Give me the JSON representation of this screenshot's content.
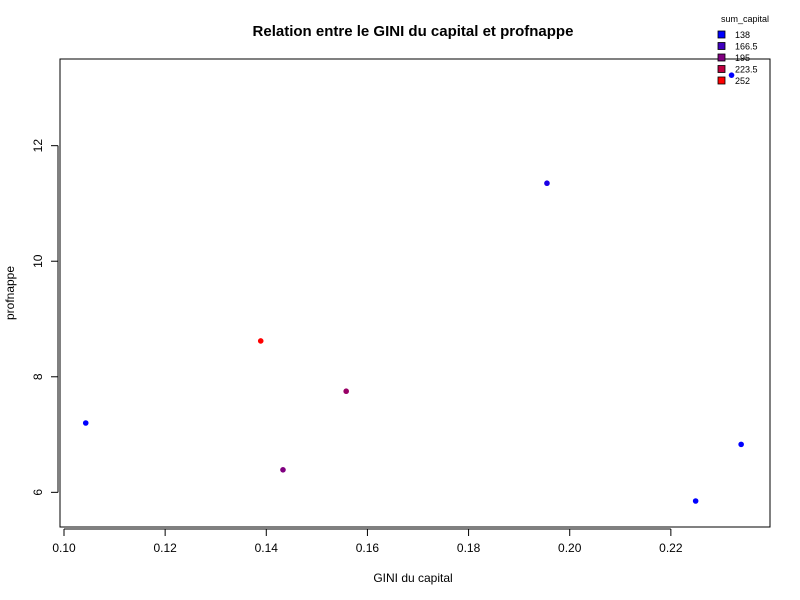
{
  "chart_data": {
    "type": "scatter",
    "title": "Relation entre le GINI du capital et profnappe",
    "xlabel": "GINI du capital",
    "ylabel": "profnappe",
    "xlim": [
      0.1,
      0.24
    ],
    "ylim": [
      5.4,
      13.5
    ],
    "x_ticks": [
      0.1,
      0.12,
      0.14,
      0.16,
      0.18,
      0.2,
      0.22
    ],
    "x_tick_labels": [
      "0.10",
      "0.12",
      "0.14",
      "0.16",
      "0.18",
      "0.20",
      "0.22"
    ],
    "y_ticks": [
      6,
      8,
      10,
      12
    ],
    "y_tick_labels": [
      "6",
      "8",
      "10",
      "12"
    ],
    "grid": false,
    "legend": {
      "title": "sum_capital",
      "placement": "top-right",
      "entries": [
        {
          "label": "138",
          "color": "#0000ff"
        },
        {
          "label": "166.5",
          "color": "#4000bf"
        },
        {
          "label": "195",
          "color": "#800080"
        },
        {
          "label": "223.5",
          "color": "#bf0040"
        },
        {
          "label": "252",
          "color": "#ff0000"
        }
      ]
    },
    "points": [
      {
        "x": 0.1043,
        "y": 7.2,
        "color": "#0000ff"
      },
      {
        "x": 0.1389,
        "y": 8.62,
        "color": "#ff0000"
      },
      {
        "x": 0.1433,
        "y": 6.39,
        "color": "#800080"
      },
      {
        "x": 0.1558,
        "y": 7.75,
        "color": "#990066"
      },
      {
        "x": 0.1955,
        "y": 11.35,
        "color": "#1a00e6"
      },
      {
        "x": 0.2249,
        "y": 5.85,
        "color": "#0000ff"
      },
      {
        "x": 0.232,
        "y": 13.22,
        "color": "#0000ff"
      },
      {
        "x": 0.2339,
        "y": 6.83,
        "color": "#0000ff"
      }
    ]
  }
}
